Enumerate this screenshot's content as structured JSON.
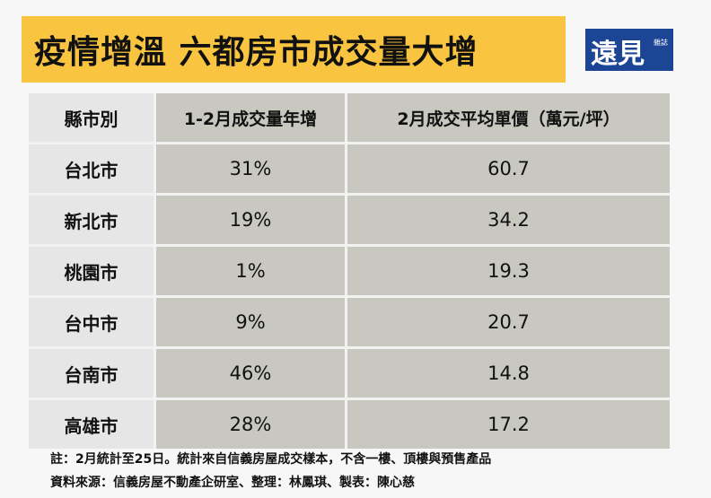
{
  "title": "疫情增溫  六都房市成交量大增",
  "logo": {
    "main": "遠見",
    "sub": "雜誌"
  },
  "chart_data": {
    "type": "table",
    "columns": [
      "縣市別",
      "1-2月成交量年增",
      "2月成交平均單價（萬元/坪）"
    ],
    "rows": [
      [
        "台北市",
        "31%",
        "60.7"
      ],
      [
        "新北市",
        "19%",
        "34.2"
      ],
      [
        "桃園市",
        "1%",
        "19.3"
      ],
      [
        "台中市",
        "9%",
        "20.7"
      ],
      [
        "台南市",
        "46%",
        "14.8"
      ],
      [
        "高雄市",
        "28%",
        "17.2"
      ]
    ]
  },
  "notes": {
    "note": "註：2月統計至25日。統計來自信義房屋成交樣本，不含一樓、頂樓與預售產品",
    "source": "資料來源：信義房屋不動產企研室、整理：林鳳琪、製表：陳心慈"
  },
  "colors": {
    "banner": "#f9c540",
    "logo": "#1c4596",
    "cell": "#c8c8c0",
    "first_col": "#e6e6e6"
  }
}
